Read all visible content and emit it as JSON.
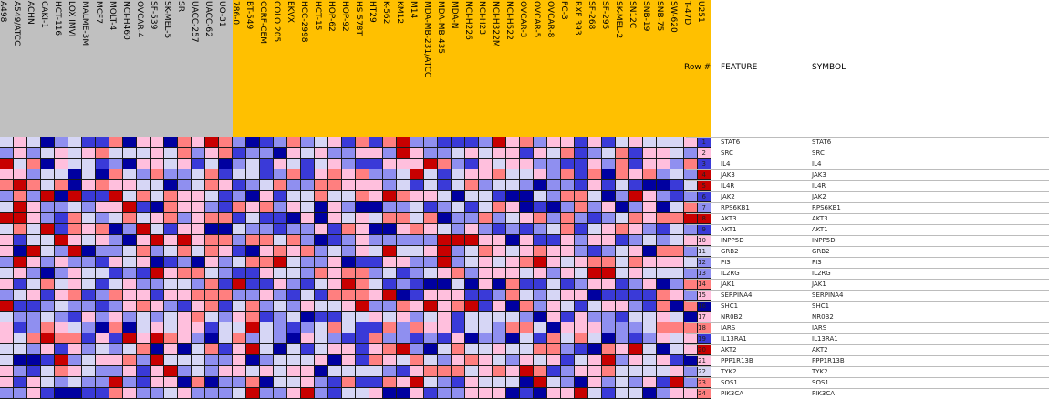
{
  "colors": {
    "class_a_band": "#c0c0c0",
    "class_b_band": "#ffc000",
    "scale": [
      "#c80000",
      "#ff7f7f",
      "#ffbfdd",
      "#d6d6f5",
      "#8f8ff0",
      "#3a3ad8",
      "#0000a0"
    ]
  },
  "columns_class_a": [
    "A498",
    "A549/ATCC",
    "ACHN",
    "CAKI-1",
    "HCT-116",
    "LOX IMVI",
    "MALME-3M",
    "MCF7",
    "MOLT-4",
    "NCI-H460",
    "OVCAR-4",
    "SF-539",
    "SK-MEL-5",
    "SR",
    "UACC-257",
    "UACC-62",
    "UO-31"
  ],
  "columns_class_b": [
    "786-0",
    "BT-549",
    "CCRF-CEM",
    "COLO 205",
    "EKVX",
    "HCC-2998",
    "HCT-15",
    "HOP-62",
    "HOP-92",
    "HS 578T",
    "HT29",
    "K-562",
    "KM12",
    "M14",
    "MDA-MB-231/ATCC",
    "MDA-MB-435",
    "MDA-N",
    "NCI-H226",
    "NCI-H23",
    "NCI-H322M",
    "NCI-H522",
    "OVCAR-3",
    "OVCAR-5",
    "OVCAR-8",
    "PC-3",
    "RXF 393",
    "SF-268",
    "SF-295",
    "SK-MEL-2",
    "SN12C",
    "SNB-19",
    "SNB-75",
    "SW-620",
    "T-47D",
    "U251"
  ],
  "headers": {
    "row_num": "Row #",
    "feature": "FEATURE",
    "symbol": "SYMBOL"
  },
  "rows": [
    {
      "num": "1",
      "feature": "STAT6",
      "symbol": "STAT6"
    },
    {
      "num": "2",
      "feature": "SRC",
      "symbol": "SRC"
    },
    {
      "num": "3",
      "feature": "IL4",
      "symbol": "IL4"
    },
    {
      "num": "4",
      "feature": "JAK3",
      "symbol": "JAK3"
    },
    {
      "num": "5",
      "feature": "IL4R",
      "symbol": "IL4R"
    },
    {
      "num": "6",
      "feature": "JAK2",
      "symbol": "JAK2"
    },
    {
      "num": "7",
      "feature": "RPS6KB1",
      "symbol": "RPS6KB1"
    },
    {
      "num": "8",
      "feature": "AKT3",
      "symbol": "AKT3"
    },
    {
      "num": "9",
      "feature": "AKT1",
      "symbol": "AKT1"
    },
    {
      "num": "10",
      "feature": "INPP5D",
      "symbol": "INPP5D"
    },
    {
      "num": "11",
      "feature": "GRB2",
      "symbol": "GRB2"
    },
    {
      "num": "12",
      "feature": "PI3",
      "symbol": "PI3"
    },
    {
      "num": "13",
      "feature": "IL2RG",
      "symbol": "IL2RG"
    },
    {
      "num": "14",
      "feature": "JAK1",
      "symbol": "JAK1"
    },
    {
      "num": "15",
      "feature": "SERPINA4",
      "symbol": "SERPINA4"
    },
    {
      "num": "16",
      "feature": "SHC1",
      "symbol": "SHC1"
    },
    {
      "num": "17",
      "feature": "NR0B2",
      "symbol": "NR0B2"
    },
    {
      "num": "18",
      "feature": "IARS",
      "symbol": "IARS"
    },
    {
      "num": "19",
      "feature": "IL13RA1",
      "symbol": "IL13RA1"
    },
    {
      "num": "20",
      "feature": "AKT2",
      "symbol": "AKT2"
    },
    {
      "num": "21",
      "feature": "PPP1R13B",
      "symbol": "PPP1R13B"
    },
    {
      "num": "22",
      "feature": "TYK2",
      "symbol": "TYK2"
    },
    {
      "num": "23",
      "feature": "SOS1",
      "symbol": "SOS1"
    },
    {
      "num": "24",
      "feature": "PIK3CA",
      "symbol": "PIK3CA"
    }
  ]
}
